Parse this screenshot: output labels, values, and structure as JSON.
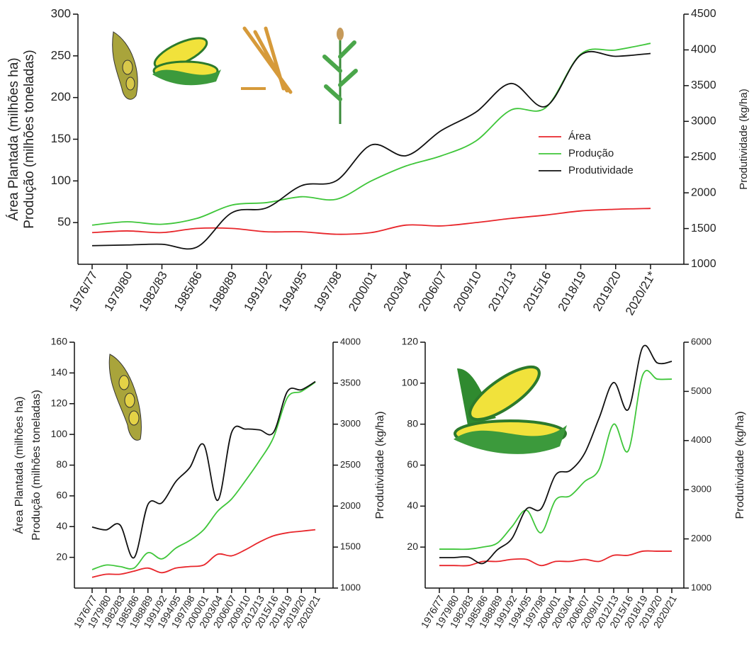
{
  "chart_data": [
    {
      "type": "line",
      "y_label": [
        "Área Plantada (milhões ha)",
        "Produção (milhões toneladas)"
      ],
      "y2_label": "Produtividade (kg/ha)",
      "categories": [
        "1976/77",
        "1979/80",
        "1982/83",
        "1985/86",
        "1988/89",
        "1991/92",
        "1994/95",
        "1997/98",
        "2000/01",
        "2003/04",
        "2006/07",
        "2009/10",
        "2012/13",
        "2015/16",
        "2018/19",
        "2019/20",
        "2020/21*"
      ],
      "ylim": [
        0,
        300
      ],
      "yticks": [
        50,
        100,
        150,
        200,
        250,
        300
      ],
      "y2lim": [
        1000,
        4500
      ],
      "y2ticks": [
        1000,
        1500,
        2000,
        2500,
        3000,
        3500,
        4000,
        4500
      ],
      "series": [
        {
          "name": "Área",
          "color": "#e8262b",
          "values": [
            38,
            40,
            38,
            43,
            43,
            39,
            39,
            36,
            38,
            47,
            46,
            50,
            55,
            59,
            64,
            66,
            67
          ]
        },
        {
          "name": "Produção",
          "color": "#3fc63a",
          "values": [
            47,
            51,
            48,
            55,
            71,
            74,
            81,
            78,
            100,
            118,
            130,
            148,
            185,
            188,
            252,
            257,
            265
          ]
        },
        {
          "name": "Produtividade",
          "color": "#111111",
          "axis": "y2",
          "values": [
            1260,
            1270,
            1280,
            1240,
            1720,
            1790,
            2100,
            2170,
            2670,
            2520,
            2870,
            3130,
            3530,
            3210,
            3930,
            3910,
            3950
          ]
        }
      ]
    },
    {
      "type": "line",
      "y_label": [
        "Área Plantada (milhões ha)",
        "Produção (milhões toneladas)"
      ],
      "y2_label": "Produtividade (kg/ha)",
      "categories": [
        "1976/77",
        "1979/80",
        "1982/83",
        "1985/86",
        "1988/89",
        "1991/92",
        "1994/95",
        "1997/98",
        "2000/01",
        "2003/04",
        "2006/07",
        "2009/10",
        "2012/13",
        "2015/16",
        "2018/19",
        "2019/20",
        "2020/21"
      ],
      "ylim": [
        0,
        160
      ],
      "yticks": [
        20,
        40,
        60,
        80,
        100,
        120,
        140,
        160
      ],
      "y2lim": [
        1000,
        4000
      ],
      "y2ticks": [
        1000,
        1500,
        2000,
        2500,
        3000,
        3500,
        4000
      ],
      "series": [
        {
          "color": "#e8262b",
          "values": [
            7,
            9,
            9,
            11,
            13,
            10,
            13,
            14,
            15,
            22,
            21,
            25,
            30,
            34,
            36,
            37,
            38
          ]
        },
        {
          "color": "#3fc63a",
          "values": [
            12,
            15,
            14,
            13,
            23,
            19,
            26,
            31,
            38,
            50,
            58,
            70,
            83,
            98,
            124,
            128,
            134
          ]
        },
        {
          "color": "#111111",
          "axis": "y2",
          "values": [
            1745,
            1710,
            1770,
            1370,
            2020,
            2040,
            2300,
            2470,
            2750,
            2070,
            2900,
            2940,
            2930,
            2900,
            3400,
            3420,
            3520
          ]
        }
      ]
    },
    {
      "type": "line",
      "y2_label": "Produtividade (kg/ha)",
      "categories": [
        "1976/77",
        "1979/80",
        "1982/83",
        "1985/86",
        "1988/89",
        "1991/92",
        "1994/95",
        "1997/98",
        "2000/01",
        "2003/04",
        "2006/07",
        "2009/10",
        "2012/13",
        "2015/16",
        "2018/19",
        "2019/20",
        "2020/21"
      ],
      "ylim": [
        0,
        120
      ],
      "yticks": [
        20,
        40,
        60,
        80,
        100,
        120
      ],
      "y2lim": [
        1000,
        6000
      ],
      "y2ticks": [
        1000,
        2000,
        3000,
        4000,
        5000,
        6000
      ],
      "series": [
        {
          "color": "#e8262b",
          "values": [
            11,
            11,
            11,
            13,
            13,
            14,
            14,
            11,
            13,
            13,
            14,
            13,
            16,
            16,
            18,
            18,
            18
          ]
        },
        {
          "color": "#3fc63a",
          "values": [
            19,
            19,
            19,
            20,
            22,
            30,
            38,
            27,
            43,
            45,
            52,
            58,
            80,
            67,
            104,
            102,
            102
          ]
        },
        {
          "color": "#111111",
          "axis": "y2",
          "values": [
            1620,
            1620,
            1630,
            1500,
            1780,
            2010,
            2610,
            2610,
            3300,
            3390,
            3740,
            4460,
            5180,
            4630,
            5900,
            5580,
            5610
          ]
        }
      ]
    }
  ]
}
